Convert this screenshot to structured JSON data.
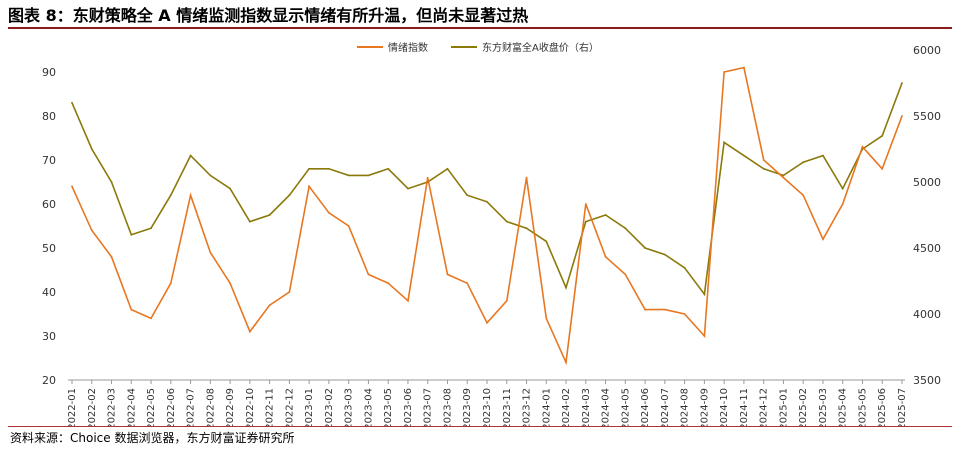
{
  "title": "图表 8：东财策略全 A 情绪监测指数显示情绪有所升温，但尚未显著过热",
  "source": "资料来源：Choice 数据浏览器，东方财富证券研究所",
  "chart_data": {
    "type": "line",
    "legend_position": "top-center",
    "grid": false,
    "x": [
      "2022-01",
      "2022-02",
      "2022-03",
      "2022-04",
      "2022-05",
      "2022-06",
      "2022-07",
      "2022-08",
      "2022-09",
      "2022-10",
      "2022-11",
      "2022-12",
      "2023-01",
      "2023-02",
      "2023-03",
      "2023-04",
      "2023-05",
      "2023-06",
      "2023-07",
      "2023-08",
      "2023-09",
      "2023-10",
      "2023-11",
      "2023-12",
      "2024-01",
      "2024-02",
      "2024-03",
      "2024-04",
      "2024-05",
      "2024-06",
      "2024-07",
      "2024-08",
      "2024-09",
      "2024-10",
      "2024-11",
      "2024-12",
      "2025-01",
      "2025-02",
      "2025-03",
      "2025-04",
      "2025-05",
      "2025-06",
      "2025-07"
    ],
    "y_left": {
      "ticks": [
        20,
        30,
        40,
        50,
        60,
        70,
        80,
        90
      ],
      "lim": [
        20,
        95
      ]
    },
    "y_right": {
      "ticks": [
        3500,
        4000,
        4500,
        5000,
        5500,
        6000
      ],
      "lim": [
        3500,
        6000
      ]
    },
    "series": [
      {
        "name": "情绪指数",
        "axis": "left",
        "color": "#E87722",
        "values": [
          64,
          54,
          48,
          36,
          34,
          42,
          62,
          49,
          42,
          31,
          37,
          40,
          64,
          58,
          55,
          44,
          42,
          38,
          66,
          44,
          42,
          33,
          38,
          66,
          34,
          24,
          60,
          48,
          44,
          36,
          36,
          35,
          30,
          90,
          91,
          70,
          66,
          62,
          52,
          60,
          73,
          68,
          80
        ]
      },
      {
        "name": "东方财富全A收盘价（右）",
        "axis": "right",
        "color": "#8B7A0A",
        "values": [
          5600,
          5250,
          5000,
          4600,
          4650,
          4900,
          5200,
          5050,
          4950,
          4700,
          4750,
          4900,
          5100,
          5100,
          5050,
          5050,
          5100,
          4950,
          5000,
          5100,
          4900,
          4850,
          4700,
          4650,
          4550,
          4200,
          4700,
          4750,
          4650,
          4500,
          4450,
          4350,
          4150,
          5300,
          5200,
          5100,
          5050,
          5150,
          5200,
          4950,
          5250,
          5350,
          5750
        ]
      }
    ]
  }
}
